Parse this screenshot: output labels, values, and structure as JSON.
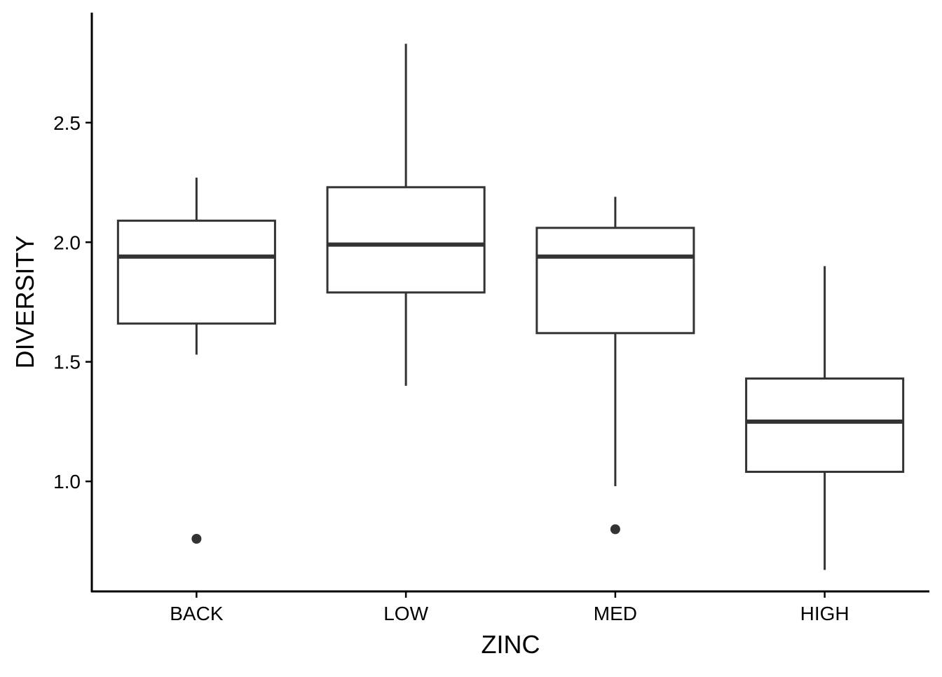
{
  "chart_data": {
    "type": "boxplot",
    "xlabel": "ZINC",
    "ylabel": "DIVERSITY",
    "ylim": [
      0.54,
      2.96
    ],
    "yticks": [
      1.0,
      1.5,
      2.0,
      2.5
    ],
    "ytick_labels": [
      "1.0",
      "1.5",
      "2.0",
      "2.5"
    ],
    "categories": [
      "BACK",
      "LOW",
      "MED",
      "HIGH"
    ],
    "boxes": [
      {
        "category": "BACK",
        "lower_whisker": 1.53,
        "q1": 1.66,
        "median": 1.94,
        "q3": 2.09,
        "upper_whisker": 2.27,
        "outliers": [
          0.76
        ]
      },
      {
        "category": "LOW",
        "lower_whisker": 1.4,
        "q1": 1.79,
        "median": 1.99,
        "q3": 2.23,
        "upper_whisker": 2.83,
        "outliers": []
      },
      {
        "category": "MED",
        "lower_whisker": 0.98,
        "q1": 1.62,
        "median": 1.94,
        "q3": 2.06,
        "upper_whisker": 2.19,
        "outliers": [
          0.8
        ]
      },
      {
        "category": "HIGH",
        "lower_whisker": 0.63,
        "q1": 1.04,
        "median": 1.25,
        "q3": 1.43,
        "upper_whisker": 1.9,
        "outliers": []
      }
    ],
    "grid": false,
    "legend": "none",
    "colors": {
      "box_stroke": "#333333",
      "outlier": "#333333",
      "axis": "#000000",
      "background": "#ffffff"
    }
  }
}
